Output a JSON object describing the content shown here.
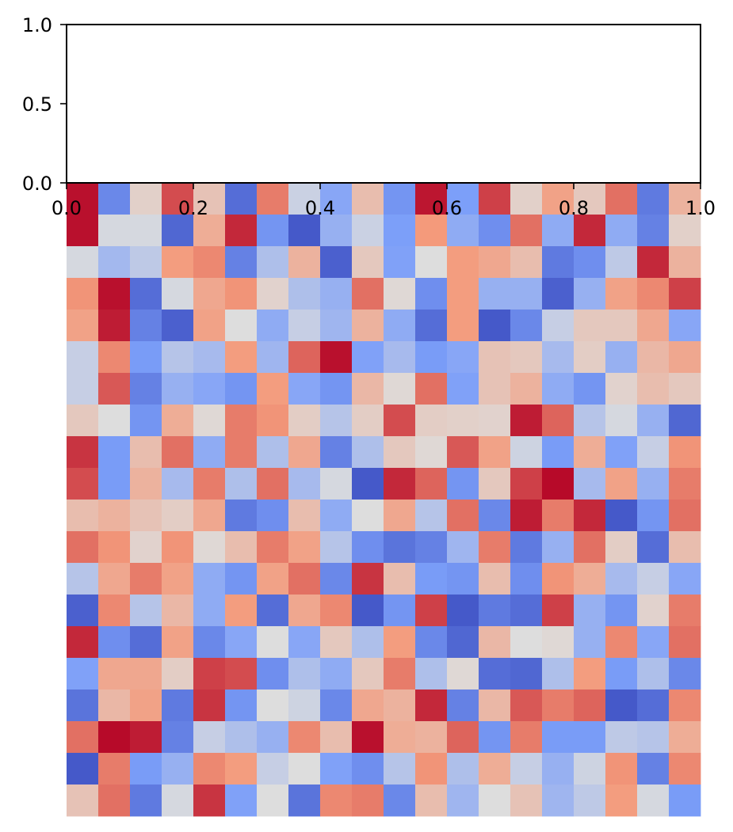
{
  "chart_data": [
    {
      "type": "line",
      "title": "",
      "xlabel": "",
      "ylabel": "",
      "xlim": [
        0.0,
        1.0
      ],
      "ylim": [
        0.0,
        1.0
      ],
      "x_tick_labels": [
        "0.0",
        "0.2",
        "0.4",
        "0.6",
        "0.8",
        "1.0"
      ],
      "y_tick_labels": [
        "0.0",
        "0.5",
        "1.0"
      ],
      "grid": false,
      "series": []
    },
    {
      "type": "heatmap",
      "title": "",
      "xlabel": "",
      "ylabel": "",
      "axes_visible": false,
      "colormap": "coolwarm",
      "vmin": 0,
      "vmax": 1,
      "rows": 20,
      "cols": 20,
      "values": [
        [
          0.98,
          0.18,
          0.55,
          0.88,
          0.6,
          0.1,
          0.8,
          0.45,
          0.28,
          0.62,
          0.22,
          0.97,
          0.25,
          0.9,
          0.55,
          0.72,
          0.58,
          0.82,
          0.14,
          0.66
        ],
        [
          0.98,
          0.48,
          0.48,
          0.08,
          0.68,
          0.94,
          0.22,
          0.04,
          0.32,
          0.45,
          0.25,
          0.75,
          0.3,
          0.2,
          0.82,
          0.3,
          0.94,
          0.3,
          0.16,
          0.55
        ],
        [
          0.48,
          0.35,
          0.42,
          0.74,
          0.78,
          0.16,
          0.38,
          0.66,
          0.06,
          0.58,
          0.26,
          0.5,
          0.74,
          0.7,
          0.62,
          0.14,
          0.2,
          0.42,
          0.94,
          0.66
        ],
        [
          0.76,
          0.98,
          0.1,
          0.48,
          0.7,
          0.76,
          0.54,
          0.38,
          0.32,
          0.82,
          0.52,
          0.2,
          0.74,
          0.32,
          0.32,
          0.06,
          0.32,
          0.72,
          0.78,
          0.9
        ],
        [
          0.72,
          0.96,
          0.16,
          0.06,
          0.72,
          0.5,
          0.3,
          0.44,
          0.34,
          0.66,
          0.3,
          0.1,
          0.74,
          0.04,
          0.18,
          0.44,
          0.58,
          0.58,
          0.7,
          0.28
        ],
        [
          0.44,
          0.78,
          0.24,
          0.4,
          0.36,
          0.74,
          0.34,
          0.84,
          0.98,
          0.26,
          0.36,
          0.24,
          0.28,
          0.6,
          0.58,
          0.36,
          0.56,
          0.32,
          0.64,
          0.7
        ],
        [
          0.44,
          0.86,
          0.16,
          0.32,
          0.28,
          0.22,
          0.74,
          0.28,
          0.22,
          0.64,
          0.52,
          0.82,
          0.26,
          0.6,
          0.66,
          0.3,
          0.22,
          0.54,
          0.62,
          0.58
        ],
        [
          0.58,
          0.5,
          0.22,
          0.68,
          0.52,
          0.8,
          0.76,
          0.56,
          0.4,
          0.56,
          0.88,
          0.56,
          0.55,
          0.54,
          0.96,
          0.84,
          0.4,
          0.48,
          0.32,
          0.08
        ],
        [
          0.92,
          0.24,
          0.62,
          0.82,
          0.3,
          0.8,
          0.38,
          0.7,
          0.16,
          0.38,
          0.58,
          0.52,
          0.86,
          0.72,
          0.46,
          0.24,
          0.68,
          0.26,
          0.44,
          0.76
        ],
        [
          0.88,
          0.24,
          0.66,
          0.36,
          0.8,
          0.38,
          0.82,
          0.36,
          0.48,
          0.04,
          0.94,
          0.84,
          0.22,
          0.58,
          0.9,
          0.99,
          0.36,
          0.72,
          0.32,
          0.8
        ],
        [
          0.62,
          0.66,
          0.6,
          0.56,
          0.7,
          0.14,
          0.2,
          0.62,
          0.3,
          0.5,
          0.7,
          0.4,
          0.82,
          0.18,
          0.96,
          0.8,
          0.94,
          0.04,
          0.22,
          0.82
        ],
        [
          0.82,
          0.76,
          0.54,
          0.76,
          0.52,
          0.62,
          0.8,
          0.72,
          0.4,
          0.2,
          0.12,
          0.16,
          0.34,
          0.8,
          0.14,
          0.32,
          0.82,
          0.56,
          0.1,
          0.62
        ],
        [
          0.4,
          0.7,
          0.8,
          0.72,
          0.3,
          0.22,
          0.72,
          0.82,
          0.18,
          0.92,
          0.62,
          0.24,
          0.22,
          0.62,
          0.2,
          0.76,
          0.68,
          0.36,
          0.44,
          0.28
        ],
        [
          0.06,
          0.78,
          0.4,
          0.64,
          0.3,
          0.74,
          0.1,
          0.7,
          0.78,
          0.04,
          0.22,
          0.9,
          0.04,
          0.14,
          0.1,
          0.9,
          0.32,
          0.22,
          0.54,
          0.8
        ],
        [
          0.94,
          0.2,
          0.1,
          0.72,
          0.18,
          0.28,
          0.5,
          0.28,
          0.58,
          0.38,
          0.74,
          0.18,
          0.08,
          0.64,
          0.5,
          0.52,
          0.32,
          0.78,
          0.28,
          0.82
        ],
        [
          0.26,
          0.7,
          0.7,
          0.56,
          0.9,
          0.88,
          0.2,
          0.38,
          0.3,
          0.58,
          0.8,
          0.38,
          0.52,
          0.1,
          0.08,
          0.38,
          0.74,
          0.24,
          0.38,
          0.18
        ],
        [
          0.12,
          0.64,
          0.72,
          0.14,
          0.92,
          0.22,
          0.5,
          0.46,
          0.18,
          0.7,
          0.66,
          0.94,
          0.16,
          0.64,
          0.86,
          0.8,
          0.84,
          0.04,
          0.1,
          0.78
        ],
        [
          0.82,
          0.99,
          0.96,
          0.16,
          0.44,
          0.38,
          0.32,
          0.78,
          0.62,
          0.98,
          0.68,
          0.66,
          0.84,
          0.22,
          0.8,
          0.24,
          0.24,
          0.42,
          0.4,
          0.68
        ],
        [
          0.04,
          0.8,
          0.24,
          0.32,
          0.78,
          0.74,
          0.44,
          0.5,
          0.26,
          0.2,
          0.4,
          0.76,
          0.38,
          0.68,
          0.44,
          0.32,
          0.46,
          0.76,
          0.16,
          0.78
        ],
        [
          0.6,
          0.82,
          0.14,
          0.48,
          0.92,
          0.26,
          0.5,
          0.12,
          0.78,
          0.8,
          0.18,
          0.62,
          0.34,
          0.5,
          0.6,
          0.34,
          0.42,
          0.74,
          0.48,
          0.24
        ]
      ]
    }
  ]
}
